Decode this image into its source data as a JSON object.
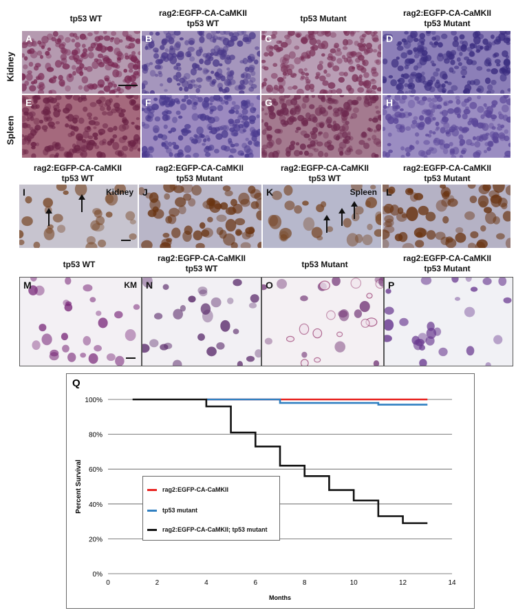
{
  "top_headers": [
    "tp53 WT",
    "rag2:EGFP-CA-CaMKII\ntp53 WT",
    "tp53 Mutant",
    "rag2:EGFP-CA-CaMKII\ntp53 Mutant"
  ],
  "row_labels": [
    "Kidney",
    "Spleen"
  ],
  "he_panels": [
    {
      "letter": "A",
      "bg": "#b59ab0",
      "cell": "#7a2a55"
    },
    {
      "letter": "B",
      "bg": "#a596bd",
      "cell": "#4c3a8a"
    },
    {
      "letter": "C",
      "bg": "#b99eb5",
      "cell": "#7a3058"
    },
    {
      "letter": "D",
      "bg": "#8c7fb8",
      "cell": "#3b2d80"
    },
    {
      "letter": "E",
      "bg": "#a5697d",
      "cell": "#6b2346"
    },
    {
      "letter": "F",
      "bg": "#9c8ac0",
      "cell": "#4a3a8e"
    },
    {
      "letter": "G",
      "bg": "#a47a8f",
      "cell": "#6e2a50"
    },
    {
      "letter": "H",
      "bg": "#9b8dc2",
      "cell": "#5a4698"
    }
  ],
  "ihc_headers": [
    "rag2:EGFP-CA-CaMKII\ntp53 WT",
    "rag2:EGFP-CA-CaMKII\ntp53 Mutant",
    "rag2:EGFP-CA-CaMKII\ntp53 WT",
    "rag2:EGFP-CA-CaMKII\ntp53 Mutant"
  ],
  "ihc_panels": [
    {
      "letter": "I",
      "tag": "Kidney",
      "bg": "#c7c4cf",
      "cell": "#7a4a2a"
    },
    {
      "letter": "J",
      "tag": "",
      "bg": "#b9b6c8",
      "cell": "#6a3412"
    },
    {
      "letter": "K",
      "tag": "Spleen",
      "bg": "#b7b8cc",
      "cell": "#7a4a2a"
    },
    {
      "letter": "L",
      "tag": "",
      "bg": "#b5b2c5",
      "cell": "#6a3412"
    }
  ],
  "km_headers": [
    "tp53 WT",
    "rag2:EGFP-CA-CaMKII\ntp53 WT",
    "tp53 Mutant",
    "rag2:EGFP-CA-CaMKII\ntp53 Mutant"
  ],
  "km_panels": [
    {
      "letter": "M",
      "tag": "KM",
      "bg": "#f3f0f4",
      "cell": "#7a2a7a"
    },
    {
      "letter": "N",
      "tag": "",
      "bg": "#f2f0f4",
      "cell": "#5a2a6a"
    },
    {
      "letter": "O",
      "tag": "",
      "bg": "#f4f0f3",
      "cell": "#6a2a6e"
    },
    {
      "letter": "P",
      "tag": "",
      "bg": "#f1f1f5",
      "cell": "#6a3a90"
    }
  ],
  "chart_data": {
    "type": "line",
    "panel_letter": "Q",
    "title": "",
    "xlabel": "Months",
    "ylabel": "Percent Survival",
    "xlim": [
      0,
      14
    ],
    "ylim": [
      0,
      100
    ],
    "x_ticks": [
      "0",
      "2",
      "4",
      "6",
      "8",
      "10",
      "12",
      "14"
    ],
    "y_ticks": [
      "0%",
      "20%",
      "40%",
      "60%",
      "80%",
      "100%"
    ],
    "grid": true,
    "step": true,
    "series": [
      {
        "name": "rag2:EGFP-CA-CaMKII",
        "color": "#e8211e",
        "x": [
          4,
          13
        ],
        "y": [
          100,
          100
        ]
      },
      {
        "name": "tp53 mutant",
        "color": "#2f7fc1",
        "x": [
          4,
          7,
          11,
          13
        ],
        "y": [
          100,
          98,
          97,
          97
        ]
      },
      {
        "name": "rag2:EGFP-CA-CaMKII; tp53 mutant",
        "color": "#111111",
        "x": [
          1,
          4,
          5,
          6,
          7,
          8,
          9,
          10,
          11,
          12,
          13
        ],
        "y": [
          100,
          96,
          81,
          73,
          62,
          56,
          48,
          42,
          33,
          29,
          29
        ]
      }
    ],
    "legend_position": "center-left"
  }
}
